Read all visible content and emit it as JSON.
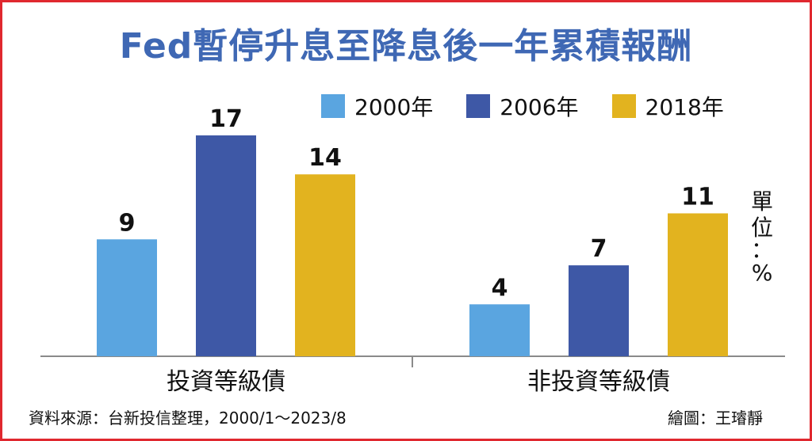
{
  "title": "Fed暫停升息至降息後一年累積報酬",
  "unit_label": {
    "chars": [
      "單",
      "位",
      "：",
      "%"
    ]
  },
  "footer": {
    "source": "資料來源：台新投信整理，2000/1～2023/8",
    "credit": "繪圖：王璿靜"
  },
  "colors": {
    "border": "#e0282f",
    "title": "#3f68b4",
    "axis": "#8a8a8a"
  },
  "chart_data": {
    "type": "bar",
    "title": "Fed暫停升息至降息後一年累積報酬",
    "categories": [
      "投資等級債",
      "非投資等級債"
    ],
    "series": [
      {
        "name": "2000年",
        "color": "#5aa5e0",
        "values": [
          9,
          4
        ]
      },
      {
        "name": "2006年",
        "color": "#3e58a6",
        "values": [
          17,
          7
        ]
      },
      {
        "name": "2018年",
        "color": "#e2b31f",
        "values": [
          14,
          11
        ]
      }
    ],
    "ylim": [
      0,
      17
    ],
    "ylabel": "單位：%",
    "legend_position": "top-right",
    "grid": false
  }
}
